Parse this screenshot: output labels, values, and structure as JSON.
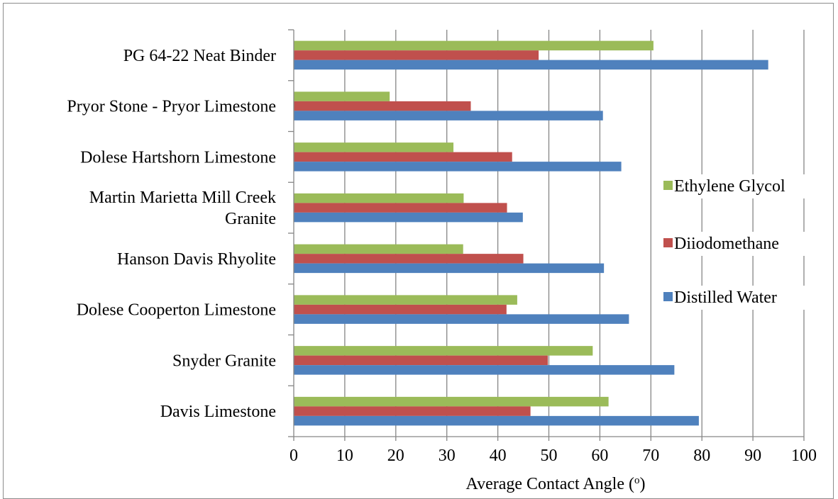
{
  "chart_data": {
    "type": "bar",
    "orientation": "horizontal",
    "categories": [
      "PG 64-22 Neat Binder",
      "Pryor Stone - Pryor Limestone",
      "Dolese Hartshorn Limestone",
      "Martin Marietta Mill Creek Granite",
      "Hanson Davis Rhyolite",
      "Dolese Cooperton Limestone",
      "Snyder Granite",
      "Davis Limestone"
    ],
    "category_lines": [
      [
        "PG 64-22 Neat Binder"
      ],
      [
        "Pryor Stone - Pryor Limestone"
      ],
      [
        "Dolese Hartshorn Limestone"
      ],
      [
        "Martin Marietta Mill Creek",
        "Granite"
      ],
      [
        "Hanson Davis Rhyolite"
      ],
      [
        "Dolese Cooperton Limestone"
      ],
      [
        "Snyder Granite"
      ],
      [
        "Davis Limestone"
      ]
    ],
    "series": [
      {
        "name": "Ethylene Glycol",
        "color": "#9bbb59",
        "values": [
          70.5,
          18.8,
          31.3,
          33.3,
          33.2,
          43.8,
          58.6,
          61.7
        ]
      },
      {
        "name": "Diiodomethane",
        "color": "#c0504d",
        "values": [
          48.0,
          34.7,
          42.8,
          41.8,
          45.0,
          41.7,
          49.8,
          46.4
        ]
      },
      {
        "name": "Distilled Water",
        "color": "#4f81bd",
        "values": [
          93.0,
          60.6,
          64.2,
          44.9,
          60.8,
          65.7,
          74.6,
          79.4
        ]
      }
    ],
    "xlabel": "Average Contact Angle (o)",
    "xlabel_main": "Average Contact Angle (",
    "xlabel_sup": "o",
    "xlabel_end": ")",
    "xlim": [
      0,
      100
    ],
    "xticks": [
      "0",
      "10",
      "20",
      "30",
      "40",
      "50",
      "60",
      "70",
      "80",
      "90",
      "100"
    ],
    "grid": "vertical",
    "legend_position": "right"
  }
}
